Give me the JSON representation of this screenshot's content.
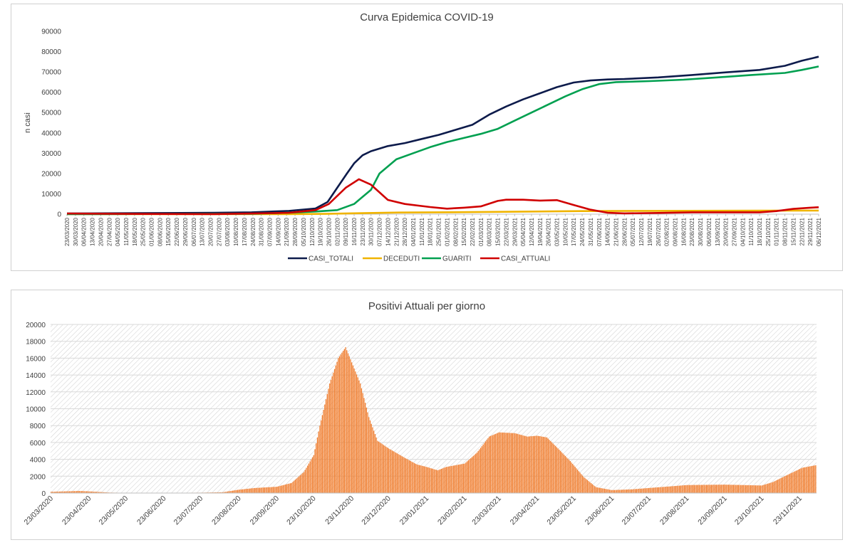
{
  "chart_data": [
    {
      "type": "line",
      "title": "Curva Epidemica COVID-19",
      "xlabel": "",
      "ylabel": "n casi",
      "ylim": [
        0,
        90000
      ],
      "yticks": [
        0,
        10000,
        20000,
        30000,
        40000,
        50000,
        60000,
        70000,
        80000,
        90000
      ],
      "grid": false,
      "legend_position": "bottom",
      "x_start": "23/03/2020",
      "x_end": "06/12/2021",
      "x_tick_labels": [
        "23/03/2020",
        "30/03/2020",
        "06/04/2020",
        "13/04/2020",
        "20/04/2020",
        "27/04/2020",
        "04/05/2020",
        "11/05/2020",
        "18/05/2020",
        "25/05/2020",
        "01/06/2020",
        "08/06/2020",
        "15/06/2020",
        "22/06/2020",
        "29/06/2020",
        "06/07/2020",
        "13/07/2020",
        "20/07/2020",
        "27/07/2020",
        "03/08/2020",
        "10/08/2020",
        "17/08/2020",
        "24/08/2020",
        "31/08/2020",
        "07/09/2020",
        "14/09/2020",
        "21/09/2020",
        "28/09/2020",
        "05/10/2020",
        "12/10/2020",
        "19/10/2020",
        "26/10/2020",
        "02/11/2020",
        "09/11/2020",
        "16/11/2020",
        "23/11/2020",
        "30/11/2020",
        "07/12/2020",
        "14/12/2020",
        "21/12/2020",
        "28/12/2020",
        "04/01/2021",
        "11/01/2021",
        "18/01/2021",
        "25/01/2021",
        "01/02/2021",
        "08/02/2021",
        "15/02/2021",
        "22/02/2021",
        "01/03/2021",
        "08/03/2021",
        "15/03/2021",
        "22/03/2021",
        "29/03/2021",
        "05/04/2021",
        "12/04/2021",
        "19/04/2021",
        "26/04/2021",
        "03/05/2021",
        "10/05/2021",
        "17/05/2021",
        "24/05/2021",
        "31/05/2021",
        "07/06/2021",
        "14/06/2021",
        "21/06/2021",
        "28/06/2021",
        "05/07/2021",
        "12/07/2021",
        "19/07/2021",
        "26/07/2021",
        "02/08/2021",
        "09/08/2021",
        "16/08/2021",
        "23/08/2021",
        "30/08/2021",
        "06/09/2021",
        "13/09/2021",
        "20/09/2021",
        "27/09/2021",
        "04/10/2021",
        "11/10/2021",
        "18/10/2021",
        "25/10/2021",
        "01/11/2021",
        "08/11/2021",
        "15/11/2021",
        "22/11/2021",
        "29/11/2021",
        "06/12/2021"
      ],
      "series": [
        {
          "name": "CASI_TOTALI",
          "color": "#0d1b4b",
          "points": [
            [
              "23/03/2020",
              300
            ],
            [
              "23/05/2020",
              500
            ],
            [
              "23/07/2020",
              700
            ],
            [
              "23/08/2020",
              900
            ],
            [
              "23/09/2020",
              1600
            ],
            [
              "15/10/2020",
              2800
            ],
            [
              "25/10/2020",
              6000
            ],
            [
              "02/11/2020",
              13000
            ],
            [
              "10/11/2020",
              20000
            ],
            [
              "16/11/2020",
              25000
            ],
            [
              "23/11/2020",
              29000
            ],
            [
              "30/11/2020",
              31000
            ],
            [
              "14/12/2020",
              33500
            ],
            [
              "28/12/2020",
              35000
            ],
            [
              "11/01/2021",
              37000
            ],
            [
              "25/01/2021",
              39000
            ],
            [
              "08/02/2021",
              41500
            ],
            [
              "22/02/2021",
              44000
            ],
            [
              "08/03/2021",
              49000
            ],
            [
              "22/03/2021",
              53000
            ],
            [
              "05/04/2021",
              56500
            ],
            [
              "19/04/2021",
              59500
            ],
            [
              "03/05/2021",
              62500
            ],
            [
              "17/05/2021",
              64800
            ],
            [
              "31/05/2021",
              65800
            ],
            [
              "14/06/2021",
              66300
            ],
            [
              "28/06/2021",
              66500
            ],
            [
              "26/07/2021",
              67300
            ],
            [
              "23/08/2021",
              68500
            ],
            [
              "20/09/2021",
              69800
            ],
            [
              "18/10/2021",
              71000
            ],
            [
              "08/11/2021",
              73000
            ],
            [
              "22/11/2021",
              75500
            ],
            [
              "06/12/2021",
              77500
            ]
          ]
        },
        {
          "name": "DECEDUTI",
          "color": "#f0b400",
          "points": [
            [
              "23/03/2020",
              0
            ],
            [
              "23/09/2020",
              50
            ],
            [
              "23/10/2020",
              150
            ],
            [
              "23/11/2020",
              500
            ],
            [
              "23/12/2020",
              800
            ],
            [
              "23/02/2021",
              1000
            ],
            [
              "23/05/2021",
              1500
            ],
            [
              "23/07/2021",
              1600
            ],
            [
              "23/10/2021",
              1700
            ],
            [
              "06/12/2021",
              1800
            ]
          ]
        },
        {
          "name": "GUARITI",
          "color": "#00a050",
          "points": [
            [
              "23/03/2020",
              0
            ],
            [
              "23/08/2020",
              200
            ],
            [
              "23/09/2020",
              700
            ],
            [
              "15/10/2020",
              1300
            ],
            [
              "02/11/2020",
              2000
            ],
            [
              "16/11/2020",
              5000
            ],
            [
              "30/11/2020",
              12000
            ],
            [
              "07/12/2020",
              20000
            ],
            [
              "21/12/2020",
              27000
            ],
            [
              "04/01/2021",
              30000
            ],
            [
              "18/01/2021",
              33000
            ],
            [
              "01/02/2021",
              35500
            ],
            [
              "15/02/2021",
              37500
            ],
            [
              "01/03/2021",
              39500
            ],
            [
              "15/03/2021",
              42000
            ],
            [
              "29/03/2021",
              46000
            ],
            [
              "12/04/2021",
              50000
            ],
            [
              "26/04/2021",
              54000
            ],
            [
              "10/05/2021",
              58000
            ],
            [
              "24/05/2021",
              61500
            ],
            [
              "07/06/2021",
              64000
            ],
            [
              "21/06/2021",
              65000
            ],
            [
              "19/07/2021",
              65500
            ],
            [
              "16/08/2021",
              66200
            ],
            [
              "13/09/2021",
              67300
            ],
            [
              "11/10/2021",
              68500
            ],
            [
              "08/11/2021",
              69500
            ],
            [
              "22/11/2021",
              71000
            ],
            [
              "06/12/2021",
              72700
            ]
          ]
        },
        {
          "name": "CASI_ATTUALI",
          "color": "#d00000",
          "points": [
            [
              "23/03/2020",
              300
            ],
            [
              "23/05/2020",
              100
            ],
            [
              "23/07/2020",
              50
            ],
            [
              "23/08/2020",
              300
            ],
            [
              "23/09/2020",
              700
            ],
            [
              "15/10/2020",
              2000
            ],
            [
              "26/10/2020",
              5000
            ],
            [
              "09/11/2020",
              13000
            ],
            [
              "20/11/2020",
              17200
            ],
            [
              "30/11/2020",
              14500
            ],
            [
              "14/12/2020",
              7000
            ],
            [
              "28/12/2020",
              5000
            ],
            [
              "18/01/2021",
              3500
            ],
            [
              "01/02/2021",
              2700
            ],
            [
              "15/02/2021",
              3200
            ],
            [
              "01/03/2021",
              3800
            ],
            [
              "15/03/2021",
              6500
            ],
            [
              "22/03/2021",
              7100
            ],
            [
              "05/04/2021",
              7100
            ],
            [
              "19/04/2021",
              6700
            ],
            [
              "03/05/2021",
              6900
            ],
            [
              "17/05/2021",
              4500
            ],
            [
              "31/05/2021",
              2200
            ],
            [
              "14/06/2021",
              700
            ],
            [
              "28/06/2021",
              400
            ],
            [
              "26/07/2021",
              600
            ],
            [
              "23/08/2021",
              900
            ],
            [
              "20/09/2021",
              900
            ],
            [
              "18/10/2021",
              900
            ],
            [
              "01/11/2021",
              1500
            ],
            [
              "15/11/2021",
              2600
            ],
            [
              "29/11/2021",
              3200
            ],
            [
              "06/12/2021",
              3400
            ]
          ]
        }
      ]
    },
    {
      "type": "bar",
      "title": "Positivi Attuali per giorno",
      "xlabel": "",
      "ylabel": "",
      "ylim": [
        0,
        20000
      ],
      "yticks": [
        0,
        2000,
        4000,
        6000,
        8000,
        10000,
        12000,
        14000,
        16000,
        18000,
        20000
      ],
      "grid": true,
      "bar_color": "#f07b2a",
      "x_start": "23/03/2020",
      "x_end": "06/12/2021",
      "x_tick_labels": [
        "23/03/2020",
        "23/04/2020",
        "23/05/2020",
        "23/06/2020",
        "23/07/2020",
        "23/08/2020",
        "23/09/2020",
        "23/10/2020",
        "23/11/2020",
        "23/12/2020",
        "23/01/2021",
        "23/02/2021",
        "23/03/2021",
        "23/04/2021",
        "23/05/2021",
        "23/06/2021",
        "23/07/2021",
        "23/08/2021",
        "23/09/2021",
        "23/10/2021",
        "23/11/2021"
      ],
      "daily_profile_points": [
        [
          "23/03/2020",
          150
        ],
        [
          "15/04/2020",
          250
        ],
        [
          "23/04/2020",
          200
        ],
        [
          "10/05/2020",
          60
        ],
        [
          "23/05/2020",
          30
        ],
        [
          "23/06/2020",
          30
        ],
        [
          "23/07/2020",
          50
        ],
        [
          "10/08/2020",
          100
        ],
        [
          "23/08/2020",
          400
        ],
        [
          "05/09/2020",
          600
        ],
        [
          "23/09/2020",
          750
        ],
        [
          "05/10/2020",
          1200
        ],
        [
          "15/10/2020",
          2500
        ],
        [
          "23/10/2020",
          4500
        ],
        [
          "28/10/2020",
          8000
        ],
        [
          "05/11/2020",
          13000
        ],
        [
          "12/11/2020",
          16000
        ],
        [
          "18/11/2020",
          17300
        ],
        [
          "23/11/2020",
          15500
        ],
        [
          "30/11/2020",
          13000
        ],
        [
          "07/12/2020",
          9000
        ],
        [
          "14/12/2020",
          6200
        ],
        [
          "23/12/2020",
          5300
        ],
        [
          "05/01/2021",
          4200
        ],
        [
          "15/01/2021",
          3400
        ],
        [
          "23/01/2021",
          3100
        ],
        [
          "01/02/2021",
          2700
        ],
        [
          "08/02/2021",
          3100
        ],
        [
          "23/02/2021",
          3500
        ],
        [
          "05/03/2021",
          4800
        ],
        [
          "15/03/2021",
          6700
        ],
        [
          "23/03/2021",
          7200
        ],
        [
          "05/04/2021",
          7100
        ],
        [
          "15/04/2021",
          6700
        ],
        [
          "23/04/2021",
          6800
        ],
        [
          "01/05/2021",
          6600
        ],
        [
          "10/05/2021",
          5300
        ],
        [
          "20/05/2021",
          3800
        ],
        [
          "31/05/2021",
          1900
        ],
        [
          "10/06/2021",
          700
        ],
        [
          "23/06/2021",
          350
        ],
        [
          "10/07/2021",
          450
        ],
        [
          "23/07/2021",
          600
        ],
        [
          "10/08/2021",
          800
        ],
        [
          "23/08/2021",
          950
        ],
        [
          "23/09/2021",
          1000
        ],
        [
          "23/10/2021",
          900
        ],
        [
          "01/11/2021",
          1300
        ],
        [
          "15/11/2021",
          2300
        ],
        [
          "25/11/2021",
          3000
        ],
        [
          "06/12/2021",
          3300
        ]
      ]
    }
  ]
}
